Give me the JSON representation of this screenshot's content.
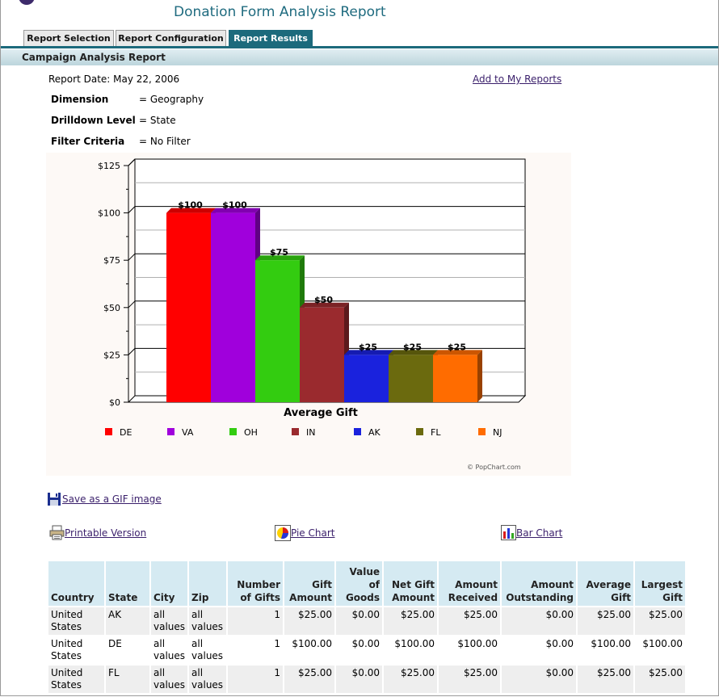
{
  "app_title": "Donation Form Analysis Report",
  "tabs": [
    {
      "label": "Report Selection",
      "active": false
    },
    {
      "label": "Report Configuration",
      "active": false
    },
    {
      "label": "Report Results",
      "active": true
    }
  ],
  "section_title": "Campaign Analysis Report",
  "report": {
    "date_text": "Report Date: May 22, 2006",
    "add_link": "Add to My Reports",
    "dimension_label": "Dimension",
    "dimension_value": "= Geography",
    "drilldown_label": "Drilldown Level",
    "drilldown_value": "= State",
    "filter_label": "Filter Criteria",
    "filter_value": "= No Filter"
  },
  "chart_data": {
    "type": "bar",
    "title": "",
    "xlabel": "Average Gift",
    "ylabel": "",
    "categories": [
      "DE",
      "VA",
      "OH",
      "IN",
      "AK",
      "FL",
      "NJ"
    ],
    "values": [
      100,
      100,
      75,
      50,
      25,
      25,
      25
    ],
    "data_labels": [
      "$100",
      "$100",
      "$75",
      "$50",
      "$25",
      "$25",
      "$25"
    ],
    "colors": [
      "#ff0000",
      "#a000dc",
      "#33cc10",
      "#9a2a2e",
      "#1a22dd",
      "#6b6a0e",
      "#ff6c00"
    ],
    "yticks": [
      "$0",
      "$25",
      "$50",
      "$75",
      "$100",
      "$125"
    ],
    "ylim": [
      0,
      125
    ],
    "grid": true,
    "legend_position": "bottom",
    "credit": "© PopChart.com"
  },
  "links": {
    "save_gif": "Save as a GIF image",
    "printable": "Printable Version",
    "pie_chart": "Pie Chart",
    "bar_chart": "Bar Chart"
  },
  "table": {
    "headers": [
      "Country",
      "State",
      "City",
      "Zip",
      "Number of Gifts",
      "Gift Amount",
      "Value of Goods",
      "Net Gift Amount",
      "Amount Received",
      "Amount Outstanding",
      "Average Gift",
      "Largest Gift"
    ],
    "rows": [
      [
        "United States",
        "AK",
        "all values",
        "all values",
        "1",
        "$25.00",
        "$0.00",
        "$25.00",
        "$25.00",
        "$0.00",
        "$25.00",
        "$25.00"
      ],
      [
        "United States",
        "DE",
        "all values",
        "all values",
        "1",
        "$100.00",
        "$0.00",
        "$100.00",
        "$100.00",
        "$0.00",
        "$100.00",
        "$100.00"
      ],
      [
        "United States",
        "FL",
        "all values",
        "all values",
        "1",
        "$25.00",
        "$0.00",
        "$25.00",
        "$25.00",
        "$0.00",
        "$25.00",
        "$25.00"
      ]
    ]
  }
}
